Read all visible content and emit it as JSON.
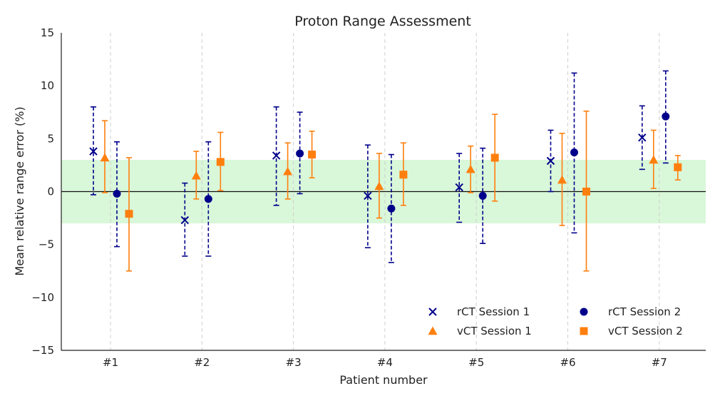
{
  "chart_data": {
    "type": "scatter",
    "title": "Proton Range Assessment",
    "xlabel": "Patient number",
    "ylabel": "Mean relative range error (%)",
    "categories": [
      "#1",
      "#2",
      "#3",
      "#4",
      "#5",
      "#6",
      "#7"
    ],
    "yticks": [
      "15",
      "10",
      "5",
      "0",
      "−5",
      "−10",
      "−15"
    ],
    "ylim": [
      -15,
      15
    ],
    "grid": "vertical dashed at categories",
    "reference_line": 0,
    "tolerance_band": [
      -3,
      3
    ],
    "legend_position": "lower-right",
    "series": [
      {
        "name": "rCT Session 1",
        "marker": "x",
        "color": "#00008B",
        "error_style": "dashed",
        "values": [
          3.8,
          -2.7,
          3.4,
          -0.4,
          0.4,
          2.9,
          5.1
        ],
        "err_low": [
          -0.3,
          -6.1,
          -1.3,
          -5.3,
          -2.9,
          0.0,
          2.1
        ],
        "err_high": [
          8.0,
          0.8,
          8.0,
          4.4,
          3.6,
          5.8,
          8.1
        ]
      },
      {
        "name": "vCT Session 1",
        "marker": "triangle",
        "color": "#FF7F0E",
        "error_style": "solid",
        "values": [
          3.2,
          1.5,
          1.9,
          0.5,
          2.1,
          1.1,
          3.0
        ],
        "err_low": [
          -0.1,
          -0.7,
          -0.7,
          -2.5,
          -0.1,
          -3.2,
          0.3
        ],
        "err_high": [
          6.7,
          3.8,
          4.6,
          3.6,
          4.3,
          5.5,
          5.8
        ]
      },
      {
        "name": "rCT Session 2",
        "marker": "circle",
        "color": "#00008B",
        "error_style": "dashed",
        "values": [
          -0.2,
          -0.7,
          3.6,
          -1.6,
          -0.4,
          3.7,
          7.1
        ],
        "err_low": [
          -5.2,
          -6.1,
          -0.2,
          -6.7,
          -4.9,
          -3.9,
          2.7
        ],
        "err_high": [
          4.7,
          4.7,
          7.5,
          3.5,
          4.1,
          11.2,
          11.4
        ]
      },
      {
        "name": "vCT Session 2",
        "marker": "square",
        "color": "#FF7F0E",
        "error_style": "solid",
        "values": [
          -2.1,
          2.8,
          3.5,
          1.6,
          3.2,
          0.0,
          2.3
        ],
        "err_low": [
          -7.5,
          0.1,
          1.3,
          -1.3,
          -0.9,
          -7.5,
          1.1
        ],
        "err_high": [
          3.2,
          5.6,
          5.7,
          4.6,
          7.3,
          7.6,
          3.4
        ]
      }
    ]
  }
}
